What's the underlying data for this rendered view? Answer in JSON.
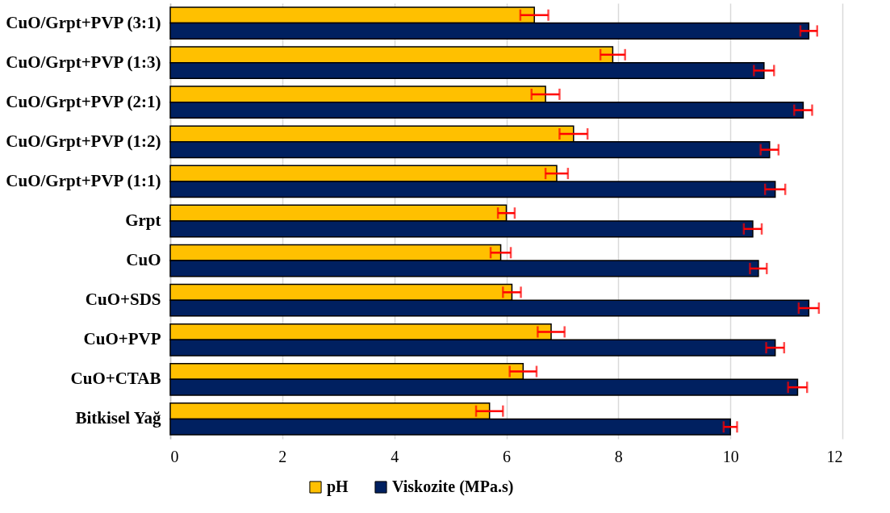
{
  "chart_data": {
    "type": "bar",
    "orientation": "horizontal",
    "categories": [
      "CuO/Grpt+PVP (3:1)",
      "CuO/Grpt+PVP (1:3)",
      "CuO/Grpt+PVP (2:1)",
      "CuO/Grpt+PVP (1:2)",
      "CuO/Grpt+PVP (1:1)",
      "Grpt",
      "CuO",
      "CuO+SDS",
      "CuO+PVP",
      "CuO+CTAB",
      "Bitkisel Yağ"
    ],
    "series": [
      {
        "name": "pH",
        "color": "#ffc000",
        "values": [
          6.5,
          7.9,
          6.7,
          7.2,
          6.9,
          6.0,
          5.9,
          6.1,
          6.8,
          6.3,
          5.7
        ],
        "errors": [
          0.25,
          0.22,
          0.25,
          0.25,
          0.2,
          0.15,
          0.18,
          0.16,
          0.24,
          0.24,
          0.24
        ]
      },
      {
        "name": "Viskozite (MPa.s)",
        "color": "#002060",
        "values": [
          11.4,
          10.6,
          11.3,
          10.7,
          10.8,
          10.4,
          10.5,
          11.4,
          10.8,
          11.2,
          10.0
        ],
        "errors": [
          0.15,
          0.18,
          0.16,
          0.16,
          0.18,
          0.16,
          0.15,
          0.18,
          0.16,
          0.17,
          0.12
        ]
      }
    ],
    "xlim": [
      0,
      12
    ],
    "xticks": [
      0,
      2,
      4,
      6,
      8,
      10,
      12
    ],
    "grid": "x",
    "legend": "bottom"
  }
}
